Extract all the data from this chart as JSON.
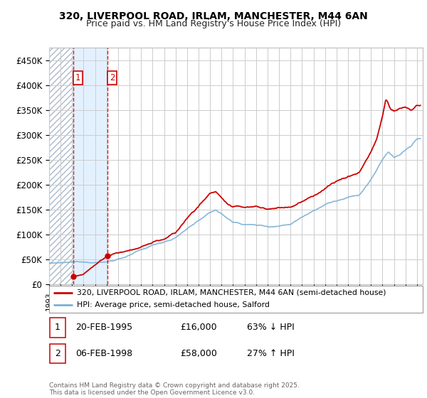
{
  "title": "320, LIVERPOOL ROAD, IRLAM, MANCHESTER, M44 6AN",
  "subtitle": "Price paid vs. HM Land Registry's House Price Index (HPI)",
  "ylabel_ticks": [
    "£0",
    "£50K",
    "£100K",
    "£150K",
    "£200K",
    "£250K",
    "£300K",
    "£350K",
    "£400K",
    "£450K"
  ],
  "ytick_values": [
    0,
    50000,
    100000,
    150000,
    200000,
    250000,
    300000,
    350000,
    400000,
    450000
  ],
  "ylim": [
    0,
    475000
  ],
  "xlim_start": 1993.0,
  "xlim_end": 2025.5,
  "sale1_date": 1995.13,
  "sale1_price": 16000,
  "sale2_date": 1998.1,
  "sale2_price": 58000,
  "legend_line1": "320, LIVERPOOL ROAD, IRLAM, MANCHESTER, M44 6AN (semi-detached house)",
  "legend_line2": "HPI: Average price, semi-detached house, Salford",
  "table_row1": [
    "1",
    "20-FEB-1995",
    "£16,000",
    "63% ↓ HPI"
  ],
  "table_row2": [
    "2",
    "06-FEB-1998",
    "£58,000",
    "27% ↑ HPI"
  ],
  "footer": "Contains HM Land Registry data © Crown copyright and database right 2025.\nThis data is licensed under the Open Government Licence v3.0.",
  "red_color": "#cc0000",
  "blue_color": "#7ab0d4",
  "shade_color": "#ddeeff",
  "grid_color": "#cccccc",
  "title_fontsize": 10,
  "subtitle_fontsize": 9
}
